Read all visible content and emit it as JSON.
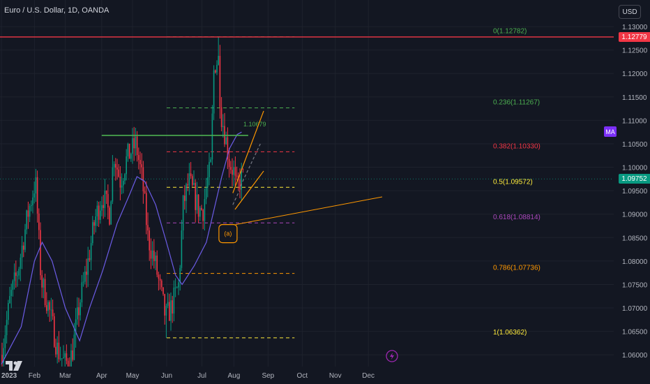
{
  "header": {
    "title": "Euro / U.S. Dollar, 1D, OANDA",
    "currency_button": "USD",
    "indicator_badge": "MA"
  },
  "colors": {
    "up": "#089981",
    "down": "#f23645",
    "ma": "#6c5ce7",
    "bg": "#131722",
    "grid": "#1e222d"
  },
  "chart_data": {
    "type": "candlestick",
    "symbol": "Euro / U.S. Dollar",
    "timeframe": "1D",
    "source": "OANDA",
    "ylim": [
      1.0575,
      1.1315
    ],
    "price_axis_ticks": [
      1.13,
      1.125,
      1.12,
      1.115,
      1.11,
      1.105,
      1.1,
      1.095,
      1.09,
      1.085,
      1.08,
      1.075,
      1.07,
      1.065,
      1.06
    ],
    "price_axis_labels": [
      "1.13000",
      "1.12500",
      "1.12000",
      "1.11500",
      "1.11000",
      "1.10500",
      "1.10000",
      "1.09500",
      "1.09000",
      "1.08500",
      "1.08000",
      "1.07500",
      "1.07000",
      "1.06500",
      "1.06000"
    ],
    "time_axis_labels": [
      {
        "label": "2023",
        "date": "2023-01-02",
        "bold": true
      },
      {
        "label": "Feb",
        "date": "2023-02-01"
      },
      {
        "label": "Mar",
        "date": "2023-03-01"
      },
      {
        "label": "Apr",
        "date": "2023-04-03"
      },
      {
        "label": "May",
        "date": "2023-05-01"
      },
      {
        "label": "Jun",
        "date": "2023-06-01"
      },
      {
        "label": "Jul",
        "date": "2023-07-03"
      },
      {
        "label": "Aug",
        "date": "2023-08-01"
      },
      {
        "label": "Sep",
        "date": "2023-09-01"
      },
      {
        "label": "Oct",
        "date": "2023-10-02"
      },
      {
        "label": "Nov",
        "date": "2023-11-01"
      },
      {
        "label": "Dec",
        "date": "2023-12-01"
      }
    ],
    "close_path": [
      [
        "2023-01-02",
        1.06
      ],
      [
        "2023-01-10",
        1.072
      ],
      [
        "2023-01-17",
        1.078
      ],
      [
        "2023-01-26",
        1.09
      ],
      [
        "2023-02-02",
        1.097
      ],
      [
        "2023-02-07",
        1.076
      ],
      [
        "2023-02-14",
        1.07
      ],
      [
        "2023-02-22",
        1.061
      ],
      [
        "2023-03-01",
        1.058
      ],
      [
        "2023-03-07",
        1.06
      ],
      [
        "2023-03-14",
        1.071
      ],
      [
        "2023-03-21",
        1.079
      ],
      [
        "2023-03-28",
        1.089
      ],
      [
        "2023-04-04",
        1.094
      ],
      [
        "2023-04-10",
        1.09
      ],
      [
        "2023-04-14",
        1.103
      ],
      [
        "2023-04-20",
        1.097
      ],
      [
        "2023-04-26",
        1.102
      ],
      [
        "2023-05-04",
        1.105
      ],
      [
        "2023-05-10",
        1.097
      ],
      [
        "2023-05-15",
        1.085
      ],
      [
        "2023-05-22",
        1.079
      ],
      [
        "2023-05-31",
        1.068
      ],
      [
        "2023-06-05",
        1.07
      ],
      [
        "2023-06-12",
        1.075
      ],
      [
        "2023-06-16",
        1.092
      ],
      [
        "2023-06-21",
        1.097
      ],
      [
        "2023-06-26",
        1.094
      ],
      [
        "2023-06-30",
        1.091
      ],
      [
        "2023-07-04",
        1.091
      ],
      [
        "2023-07-07",
        1.096
      ],
      [
        "2023-07-11",
        1.1
      ],
      [
        "2023-07-14",
        1.122
      ],
      [
        "2023-07-18",
        1.123
      ],
      [
        "2023-07-20",
        1.112
      ],
      [
        "2023-07-24",
        1.107
      ],
      [
        "2023-07-28",
        1.101
      ],
      [
        "2023-08-01",
        1.099
      ],
      [
        "2023-08-03",
        1.095
      ],
      [
        "2023-08-08",
        1.098
      ],
      [
        "2023-08-10",
        1.0975
      ]
    ],
    "range_high": [
      "2023-07-18",
      1.12782
    ],
    "range_low": [
      "2023-05-31",
      1.06362
    ],
    "last_price": 1.09752,
    "last_price_label": "1.09752",
    "moving_average": [
      [
        "2023-01-02",
        1.058
      ],
      [
        "2023-01-20",
        1.066
      ],
      [
        "2023-02-01",
        1.08
      ],
      [
        "2023-02-08",
        1.084
      ],
      [
        "2023-02-17",
        1.08
      ],
      [
        "2023-03-01",
        1.07
      ],
      [
        "2023-03-14",
        1.063
      ],
      [
        "2023-03-23",
        1.07
      ],
      [
        "2023-04-04",
        1.078
      ],
      [
        "2023-04-17",
        1.088
      ],
      [
        "2023-04-28",
        1.094
      ],
      [
        "2023-05-05",
        1.098
      ],
      [
        "2023-05-12",
        1.097
      ],
      [
        "2023-05-22",
        1.092
      ],
      [
        "2023-06-02",
        1.083
      ],
      [
        "2023-06-09",
        1.077
      ],
      [
        "2023-06-15",
        1.075
      ],
      [
        "2023-06-26",
        1.079
      ],
      [
        "2023-07-07",
        1.084
      ],
      [
        "2023-07-14",
        1.091
      ],
      [
        "2023-07-21",
        1.098
      ],
      [
        "2023-07-28",
        1.104
      ],
      [
        "2023-08-04",
        1.107
      ],
      [
        "2023-08-08",
        1.1075
      ]
    ],
    "resistance_line": {
      "price": 1.12779,
      "label": "1.12779"
    },
    "horizontal_level": {
      "price": 1.10679,
      "label": "1.10679",
      "from": "2023-04-03",
      "to": "2023-08-14"
    },
    "fib_levels": [
      {
        "ratio": "0",
        "price": 1.12782,
        "label": "0(1.12782)",
        "color": "#4caf50"
      },
      {
        "ratio": "0.236",
        "price": 1.11267,
        "label": "0.236(1.11267)",
        "color": "#4caf50"
      },
      {
        "ratio": "0.382",
        "price": 1.1033,
        "label": "0.382(1.10330)",
        "color": "#f23645"
      },
      {
        "ratio": "0.5",
        "price": 1.09572,
        "label": "0.5(1.09572)",
        "color": "#ffeb3b"
      },
      {
        "ratio": "0.618",
        "price": 1.08814,
        "label": "0.618(1.08814)",
        "color": "#ab47bc"
      },
      {
        "ratio": "0.786",
        "price": 1.07736,
        "label": "0.786(1.07736)",
        "color": "#ff9800"
      },
      {
        "ratio": "1",
        "price": 1.06362,
        "label": "1(1.06362)",
        "color": "#ffeb3b"
      }
    ],
    "fib_span": {
      "from": "2023-06-01",
      "to": "2023-09-25"
    },
    "channel_lines": [
      {
        "p1": [
          "2023-07-31",
          1.0945
        ],
        "p2": [
          "2023-08-28",
          1.112
        ],
        "color": "#ff9800",
        "dashed": false
      },
      {
        "p1": [
          "2023-08-02",
          1.091
        ],
        "p2": [
          "2023-08-28",
          1.0992
        ],
        "color": "#ff9800",
        "dashed": false
      },
      {
        "p1": [
          "2023-08-07",
          1.096
        ],
        "p2": [
          "2023-08-25",
          1.105
        ],
        "color": "#787b86",
        "dashed": true
      },
      {
        "p1": [
          "2023-07-31",
          1.092
        ],
        "p2": [
          "2023-08-06",
          1.095
        ],
        "color": "#787b86",
        "dashed": true
      }
    ],
    "annotation": {
      "text": "(a)",
      "date": "2023-07-26",
      "price": 1.086,
      "color": "#ff9800"
    },
    "grid": true,
    "legend": "none"
  }
}
